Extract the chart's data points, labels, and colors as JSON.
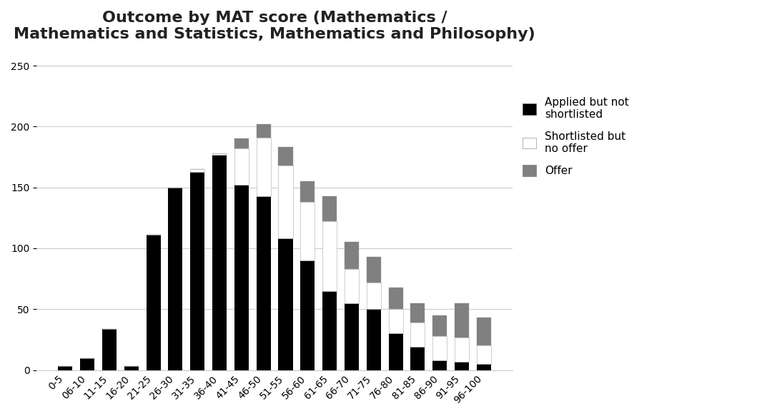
{
  "title_line1": "Outcome by MAT score (Mathematics /",
  "title_line2": "Mathematics and Statistics, Mathematics and Philosophy)",
  "categories": [
    "0-5",
    "06-10",
    "11-15",
    "16-20",
    "21-25",
    "26-30",
    "31-35",
    "36-40",
    "41-45",
    "46-50",
    "51-55",
    "56-60",
    "61-65",
    "66-70",
    "71-75",
    "76-80",
    "81-85",
    "86-90",
    "91-95",
    "96-100"
  ],
  "applied_not_shortlisted": [
    3,
    10,
    34,
    3,
    111,
    150,
    163,
    177,
    152,
    143,
    108,
    90,
    65,
    55,
    50,
    30,
    19,
    8,
    7,
    5
  ],
  "shortlisted_no_offer": [
    0,
    0,
    0,
    0,
    0,
    0,
    2,
    1,
    30,
    48,
    60,
    48,
    57,
    28,
    22,
    20,
    20,
    20,
    20,
    15
  ],
  "offer": [
    0,
    0,
    0,
    0,
    0,
    0,
    0,
    0,
    8,
    11,
    15,
    17,
    21,
    22,
    21,
    18,
    16,
    17,
    28,
    23
  ],
  "ylim": [
    0,
    260
  ],
  "yticks": [
    0,
    50,
    100,
    150,
    200,
    250
  ],
  "color_applied": "#000000",
  "color_shortlisted": "#ffffff",
  "color_offer": "#808080",
  "legend_labels": [
    "Applied but not\nshortlisted",
    "Shortlisted but\nno offer",
    "Offer"
  ],
  "background_color": "#ffffff",
  "title_fontsize": 16,
  "tick_fontsize": 10,
  "legend_fontsize": 11,
  "bar_width": 0.65
}
